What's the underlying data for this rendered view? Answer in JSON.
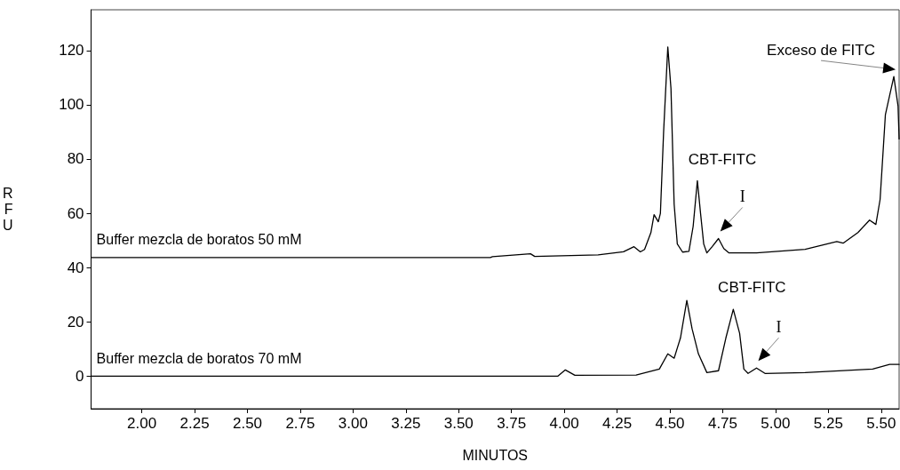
{
  "chart_data": {
    "type": "line",
    "xlabel": "MINUTOS",
    "ylabel": "RFU",
    "xlim": [
      1.76,
      5.585
    ],
    "ylim": [
      -12,
      135
    ],
    "xticks": [
      {
        "value": 2,
        "label": "2.00"
      },
      {
        "value": 2.25,
        "label": "2.25"
      },
      {
        "value": 2.5,
        "label": "2.50"
      },
      {
        "value": 2.75,
        "label": "2.75"
      },
      {
        "value": 3,
        "label": "3.00"
      },
      {
        "value": 3.25,
        "label": "3.25"
      },
      {
        "value": 3.5,
        "label": "3.50"
      },
      {
        "value": 3.75,
        "label": "3.75"
      },
      {
        "value": 4,
        "label": "4.00"
      },
      {
        "value": 4.25,
        "label": "4.25"
      },
      {
        "value": 4.5,
        "label": "4.50"
      },
      {
        "value": 4.75,
        "label": "4.75"
      },
      {
        "value": 5,
        "label": "5.00"
      },
      {
        "value": 5.25,
        "label": "5.25"
      },
      {
        "value": 5.5,
        "label": "5.50"
      }
    ],
    "yticks": [
      0,
      20,
      40,
      60,
      80,
      100,
      120
    ],
    "grid": false,
    "legend": false,
    "marker": "none",
    "line_style": "solid",
    "series": [
      {
        "name": "Buffer mezcla de boratos 50 mM",
        "color": "#000000",
        "x": [
          1.76,
          3.65,
          3.66,
          3.84,
          3.86,
          4.16,
          4.28,
          4.33,
          4.36,
          4.38,
          4.41,
          4.425,
          4.445,
          4.455,
          4.47,
          4.49,
          4.505,
          4.52,
          4.535,
          4.56,
          4.59,
          4.61,
          4.63,
          4.645,
          4.66,
          4.675,
          4.7,
          4.73,
          4.755,
          4.78,
          4.91,
          5.14,
          5.29,
          5.32,
          5.39,
          5.445,
          5.475,
          5.495,
          5.52,
          5.56,
          5.58,
          5.585
        ],
        "values": [
          43.7,
          43.7,
          44,
          45.1,
          44.1,
          44.7,
          45.8,
          47.7,
          45.8,
          46.7,
          52.9,
          59.5,
          56.9,
          60,
          89.7,
          121.3,
          106,
          63.4,
          48.7,
          45.7,
          46,
          55.2,
          72,
          60,
          48.7,
          45.4,
          47.7,
          50.7,
          47,
          45.4,
          45.4,
          46.7,
          49.6,
          49,
          52.9,
          57.5,
          55.9,
          65.1,
          96.3,
          110.4,
          99.5,
          87.4
        ]
      },
      {
        "name": "Buffer mezcla de boratos 70 mM",
        "color": "#000000",
        "x": [
          1.76,
          3.97,
          4.005,
          4.05,
          4.34,
          4.45,
          4.49,
          4.52,
          4.55,
          4.58,
          4.605,
          4.635,
          4.675,
          4.73,
          4.765,
          4.8,
          4.83,
          4.85,
          4.87,
          4.91,
          4.95,
          5.14,
          5.46,
          5.54,
          5.585
        ],
        "values": [
          0,
          0,
          2.3,
          0.3,
          0.4,
          2.6,
          8.2,
          6.6,
          14.1,
          27.9,
          17.4,
          8.2,
          1.3,
          2,
          14.1,
          24.6,
          15.8,
          2.6,
          1,
          3,
          1,
          1.3,
          2.6,
          4.3,
          4.3
        ]
      }
    ],
    "annotations": [
      {
        "text": "CBT-FITC",
        "x": 4.63,
        "y": 72
      },
      {
        "text": "I",
        "x": 4.73,
        "y": 50.7
      },
      {
        "text": "Exceso de FITC",
        "x": 5.56,
        "y": 110.4
      },
      {
        "text": "CBT-FITC",
        "x": 4.8,
        "y": 24.6
      },
      {
        "text": "I",
        "x": 4.91,
        "y": 3
      }
    ]
  }
}
